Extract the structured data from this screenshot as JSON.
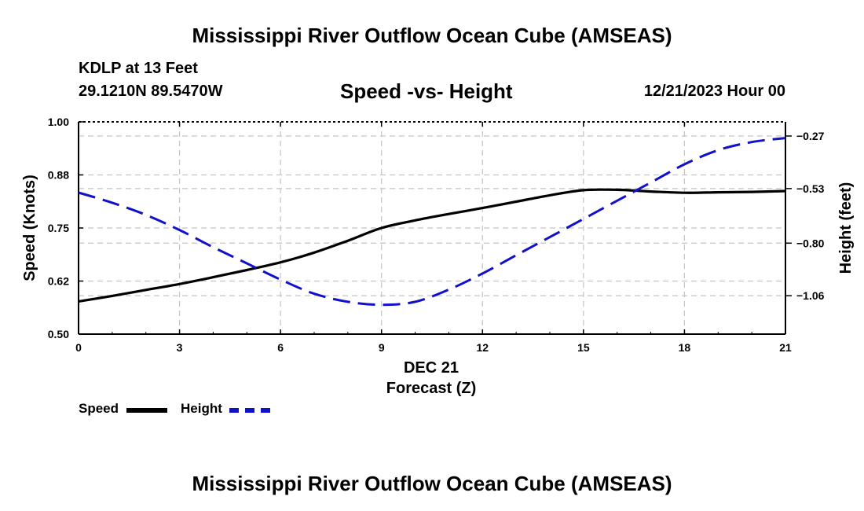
{
  "page": {
    "title": "Mississippi River Outflow Ocean Cube (AMSEAS)",
    "footer_title": "Mississippi River Outflow Ocean Cube (AMSEAS)"
  },
  "header": {
    "station": "KDLP at 13 Feet",
    "coords": "29.1210N  89.5470W",
    "subtitle": "Speed -vs- Height",
    "datetime": "12/21/2023 Hour 00"
  },
  "chart_data": {
    "type": "line",
    "title": "Speed -vs- Height",
    "xlabel_date": "DEC 21",
    "xlabel": "Forecast (Z)",
    "ylabel": "Speed (Knots)",
    "y2label": "Height (feet)",
    "xlim": [
      0,
      21
    ],
    "ylim": [
      0.5,
      1.0
    ],
    "y2lim": [
      -1.25,
      -0.2
    ],
    "x_ticks": [
      "0",
      "3",
      "6",
      "9",
      "12",
      "15",
      "18",
      "21"
    ],
    "y_ticks": [
      "0.50",
      "0.62",
      "0.75",
      "0.88",
      "1.00"
    ],
    "y_tick_values": [
      0.5,
      0.625,
      0.75,
      0.875,
      1.0
    ],
    "y2_ticks": [
      "−1.06",
      "−0.80",
      "−0.53",
      "−0.27"
    ],
    "y2_tick_values": [
      -1.06,
      -0.8,
      -0.53,
      -0.27
    ],
    "grid": true,
    "series": [
      {
        "name": "Speed",
        "axis": "left",
        "color": "#000000",
        "dash": "solid",
        "x": [
          0,
          1,
          2,
          3,
          4,
          5,
          6,
          7,
          8,
          9,
          10,
          11,
          12,
          13,
          14,
          15,
          16,
          17,
          18,
          19,
          20,
          21
        ],
        "values": [
          0.577,
          0.59,
          0.604,
          0.618,
          0.634,
          0.651,
          0.669,
          0.692,
          0.72,
          0.75,
          0.768,
          0.783,
          0.797,
          0.812,
          0.827,
          0.839,
          0.84,
          0.836,
          0.833,
          0.834,
          0.835,
          0.837
        ]
      },
      {
        "name": "Height",
        "axis": "right",
        "color": "#1111cc",
        "dash": "dashed",
        "x": [
          0,
          1,
          2,
          3,
          4,
          5,
          6,
          7,
          8,
          9,
          10,
          11,
          12,
          13,
          14,
          15,
          16,
          17,
          18,
          19,
          20,
          21
        ],
        "values": [
          -0.55,
          -0.6,
          -0.66,
          -0.735,
          -0.82,
          -0.9,
          -0.98,
          -1.05,
          -1.09,
          -1.105,
          -1.09,
          -1.03,
          -0.95,
          -0.86,
          -0.77,
          -0.68,
          -0.59,
          -0.5,
          -0.41,
          -0.34,
          -0.3,
          -0.28
        ]
      }
    ]
  },
  "legend": {
    "speed_label": "Speed",
    "height_label": "Height",
    "speed_color": "#000000",
    "height_color": "#1111cc"
  }
}
